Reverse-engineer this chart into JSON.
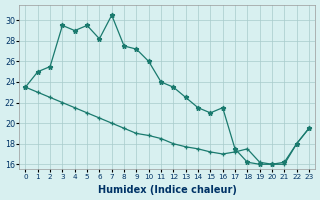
{
  "xlabel": "Humidex (Indice chaleur)",
  "x": [
    0,
    1,
    2,
    3,
    4,
    5,
    6,
    7,
    8,
    9,
    10,
    11,
    12,
    13,
    14,
    15,
    16,
    17,
    18,
    19,
    20,
    21,
    22,
    23
  ],
  "line_star": [
    23.5,
    25.0,
    25.5,
    29.5,
    29.0,
    29.5,
    28.2,
    30.5,
    27.5,
    27.2,
    26.0,
    24.0,
    23.5,
    22.5,
    21.5,
    21.0,
    21.5,
    17.5,
    16.2,
    16.0,
    16.0,
    16.2,
    18.0,
    19.5
  ],
  "line_plus": [
    23.5,
    23.0,
    22.5,
    22.0,
    21.5,
    21.0,
    20.5,
    20.0,
    19.5,
    19.0,
    18.8,
    18.5,
    18.0,
    17.7,
    17.5,
    17.2,
    17.0,
    17.2,
    17.5,
    16.2,
    16.0,
    16.0,
    18.0,
    19.5
  ],
  "ylim": [
    15.5,
    31.5
  ],
  "xlim": [
    -0.5,
    23.5
  ],
  "yticks": [
    16,
    18,
    20,
    22,
    24,
    26,
    28,
    30
  ],
  "line_color": "#1a7a6e",
  "bg_color": "#d8f0f0",
  "grid_color": "#a8cbcb",
  "tick_color": "#003366",
  "label_color": "#003366"
}
